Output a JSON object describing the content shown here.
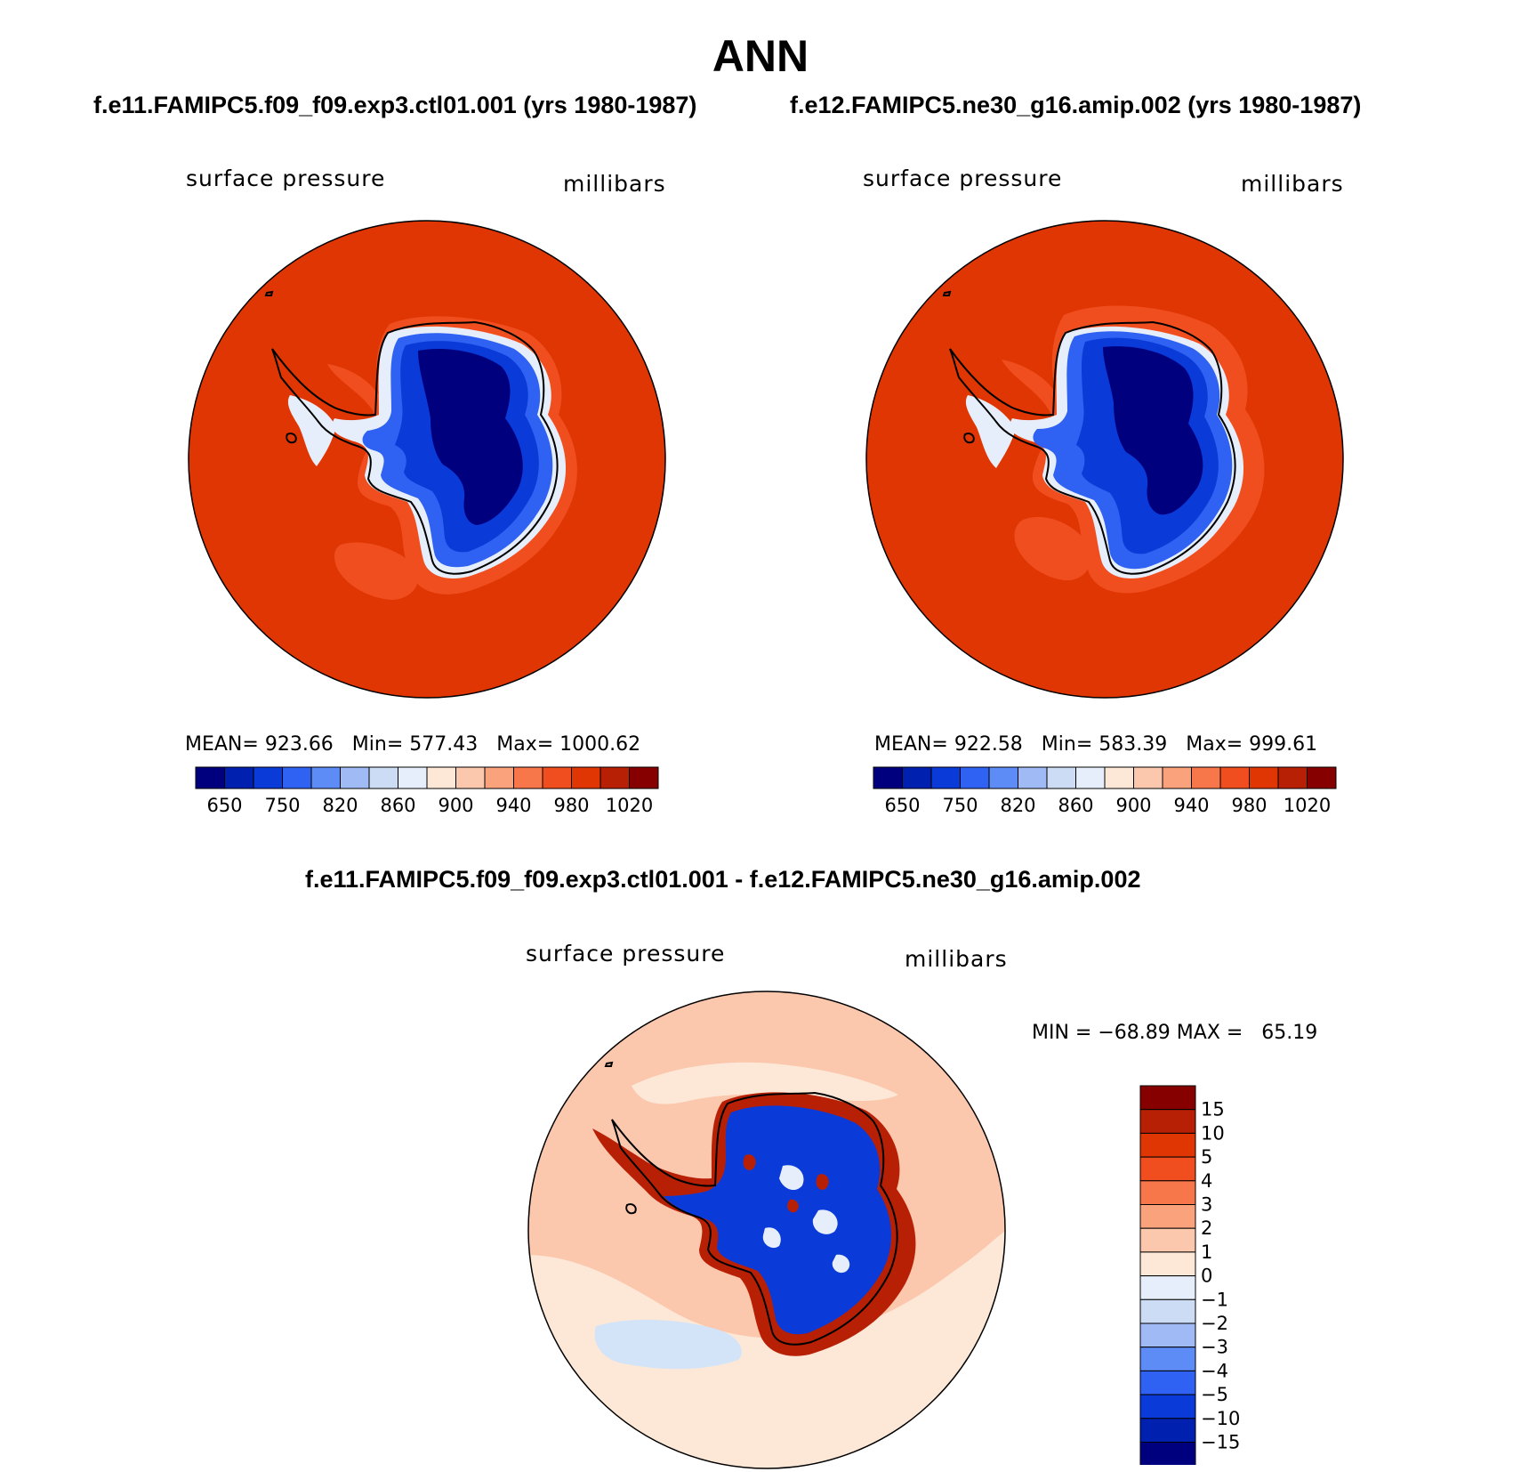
{
  "figure": {
    "title": "ANN",
    "panel_left": {
      "case_title": "f.e11.FAMIPC5.f09_f09.exp3.ctl01.001 (yrs 1980-1987)",
      "variable": "surface pressure",
      "units": "millibars",
      "mean_label": "MEAN=",
      "mean": "923.66",
      "min_label": "Min=",
      "min": "577.43",
      "max_label": "Max=",
      "max": "1000.62"
    },
    "panel_right": {
      "case_title": "f.e12.FAMIPC5.ne30_g16.amip.002 (yrs 1980-1987)",
      "variable": "surface pressure",
      "units": "millibars",
      "mean_label": "MEAN=",
      "mean": "922.58",
      "min_label": "Min=",
      "min": "583.39",
      "max_label": "Max=",
      "max": "999.61"
    },
    "panel_diff": {
      "case_title": "f.e11.FAMIPC5.f09_f09.exp3.ctl01.001 - f.e12.FAMIPC5.ne30_g16.amip.002",
      "variable": "surface pressure",
      "units": "millibars",
      "min_label": "MIN =",
      "min": "−68.89",
      "max_label": "MAX =",
      "max": "65.19"
    },
    "colorbar_field": {
      "tick_labels": [
        "650",
        "750",
        "820",
        "860",
        "900",
        "940",
        "980",
        "1020"
      ],
      "colors": [
        "#00007f",
        "#0020b0",
        "#0a3ad8",
        "#2f62f2",
        "#5e8cf6",
        "#9fbaf5",
        "#ccdcf5",
        "#e6eefb",
        "#fde8d7",
        "#fbc7ad",
        "#f9a27c",
        "#f7764a",
        "#f04e1e",
        "#df3603",
        "#b82006",
        "#870000"
      ]
    },
    "colorbar_diff": {
      "tick_labels": [
        "15",
        "10",
        "5",
        "4",
        "3",
        "2",
        "1",
        "0",
        "−1",
        "−2",
        "−3",
        "−4",
        "−5",
        "−10",
        "−15"
      ],
      "colors": [
        "#870000",
        "#b82006",
        "#df3603",
        "#f04e1e",
        "#f7764a",
        "#f9a27c",
        "#fbc7ad",
        "#fde8d7",
        "#e6eefb",
        "#ccdcf5",
        "#9fbaf5",
        "#5e8cf6",
        "#2f62f2",
        "#0a3ad8",
        "#0020b0",
        "#00007f"
      ]
    },
    "map_colors": {
      "ocean_field": "#df3603",
      "ocean_field_dark": "#b82006",
      "coast_orange": "#f04e1e",
      "ice_light": "#e6eefb",
      "ice_mid": "#2f62f2",
      "ice_deep": "#0a3ad8",
      "ice_core": "#00007f",
      "diff_ocean": "#fbc7ad",
      "diff_ocean_light": "#fde8d7",
      "diff_blue_patch": "#d4e4f8",
      "diff_red_ring": "#b82006",
      "diff_blue": "#0a3ad8"
    }
  }
}
